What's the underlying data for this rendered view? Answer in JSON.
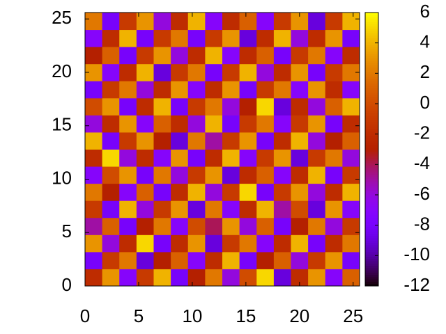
{
  "chart_data": {
    "type": "heatmap",
    "xlim": [
      0,
      25.6
    ],
    "ylim": [
      0,
      25.6
    ],
    "xticks": [
      0,
      5,
      10,
      15,
      20,
      25
    ],
    "yticks": [
      0,
      5,
      10,
      15,
      20,
      25
    ],
    "colorbar_lim": [
      -12,
      6
    ],
    "colorbar_ticks": [
      -12,
      -10,
      -8,
      -6,
      -4,
      -2,
      0,
      2,
      4,
      6
    ],
    "palette": "rgbformulae 7,5,15",
    "z": [
      [
        -2,
        3,
        -7,
        -1,
        4,
        -8,
        -3,
        2,
        -6,
        0,
        5,
        -9,
        -2,
        3,
        -7,
        1
      ],
      [
        -8,
        -1,
        2,
        -9,
        -3,
        1,
        -7,
        -2,
        4,
        -8,
        -3,
        1,
        -6,
        -1,
        3,
        -8
      ],
      [
        3,
        -6,
        -2,
        5,
        -8,
        -2,
        3,
        -9,
        -1,
        2,
        -7,
        -2,
        4,
        -8,
        -2,
        2
      ],
      [
        -5,
        1,
        -8,
        -3,
        2,
        -7,
        0,
        -4,
        3,
        -6,
        1,
        -8,
        -3,
        2,
        -6,
        -1
      ],
      [
        -1,
        -8,
        4,
        -6,
        -1,
        3,
        -9,
        2,
        -7,
        -2,
        4,
        -5,
        0,
        -9,
        3,
        -7
      ],
      [
        2,
        -3,
        -7,
        1,
        -8,
        -2,
        4,
        -6,
        -1,
        5,
        -8,
        -1,
        3,
        -6,
        -2,
        4
      ],
      [
        -7,
        0,
        3,
        -8,
        2,
        -6,
        -1,
        3,
        -9,
        -2,
        1,
        -7,
        -2,
        4,
        -8,
        -1
      ],
      [
        -2,
        5,
        -6,
        -2,
        -7,
        3,
        -8,
        -2,
        4,
        -7,
        -1,
        3,
        -9,
        -1,
        2,
        -6
      ],
      [
        4,
        -8,
        -1,
        3,
        -3,
        -9,
        2,
        -5,
        -1,
        3,
        -8,
        -2,
        4,
        -6,
        -3,
        1
      ],
      [
        -6,
        -2,
        3,
        -7,
        1,
        -2,
        -6,
        4,
        -8,
        -1,
        2,
        -7,
        -1,
        3,
        -8,
        -2
      ],
      [
        0,
        3,
        -8,
        -2,
        4,
        -8,
        -1,
        2,
        -6,
        -3,
        5,
        -9,
        -2,
        -6,
        1,
        4
      ],
      [
        -8,
        -1,
        2,
        -6,
        -2,
        3,
        -7,
        -2,
        3,
        -8,
        -1,
        2,
        -7,
        3,
        -2,
        -7
      ],
      [
        3,
        -7,
        -2,
        4,
        -9,
        -1,
        2,
        -8,
        -1,
        4,
        -6,
        -2,
        3,
        -8,
        -1,
        2
      ],
      [
        -3,
        1,
        -8,
        -1,
        3,
        -6,
        -2,
        4,
        -7,
        -2,
        1,
        -8,
        -1,
        2,
        -7,
        -2
      ],
      [
        -7,
        -2,
        4,
        -8,
        -1,
        2,
        -8,
        -1,
        3,
        -9,
        -2,
        4,
        -6,
        -2,
        3,
        -8
      ],
      [
        2,
        -8,
        -1,
        3,
        -6,
        -2,
        4,
        -7,
        -2,
        1,
        -7,
        -1,
        3,
        -9,
        -1,
        4
      ]
    ]
  }
}
